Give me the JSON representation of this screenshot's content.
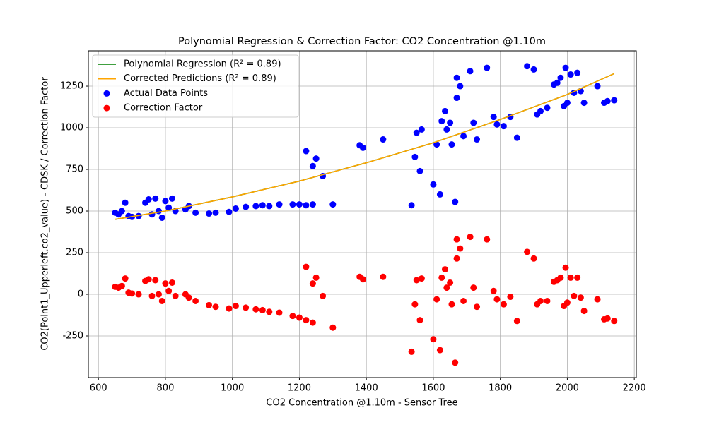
{
  "chart_data": {
    "type": "scatter",
    "title": "Polynomial Regression & Correction Factor: CO2 Concentration @1.10m",
    "x_label": "CO2 Concentration @1.10m - Sensor Tree",
    "y_label": "CO2(Point1_Upperleft.co2_value) - CDSK / Correction Factor",
    "xlim": [
      570,
      2206
    ],
    "ylim": [
      -500,
      1462
    ],
    "xticks": [
      600,
      800,
      1000,
      1200,
      1400,
      1600,
      1800,
      2000,
      2200
    ],
    "yticks": [
      -250,
      0,
      250,
      500,
      750,
      1000,
      1250
    ],
    "grid": true,
    "legend": "upper-left",
    "series": [
      {
        "name": "Polynomial Regression (R² = 0.89)",
        "color": "#008000",
        "mark": "line",
        "x": [
          650,
          800,
          1000,
          1200,
          1400,
          1600,
          1800,
          2000,
          2140
        ],
        "values": [
          450,
          500,
          585,
          680,
          790,
          910,
          1050,
          1200,
          1325
        ]
      },
      {
        "name": "Corrected Predictions (R² = 0.89)",
        "color": "#ffa500",
        "mark": "line",
        "x": [
          650,
          800,
          1000,
          1200,
          1400,
          1600,
          1800,
          2000,
          2140
        ],
        "values": [
          450,
          500,
          585,
          680,
          790,
          910,
          1050,
          1200,
          1325
        ]
      },
      {
        "name": "Actual Data Points",
        "color": "#0000ff",
        "mark": "point",
        "x": [
          650,
          660,
          670,
          680,
          690,
          700,
          720,
          740,
          750,
          760,
          770,
          780,
          790,
          800,
          810,
          820,
          830,
          860,
          870,
          890,
          930,
          950,
          990,
          1010,
          1040,
          1070,
          1090,
          1110,
          1140,
          1180,
          1200,
          1220,
          1220,
          1240,
          1250,
          1240,
          1270,
          1300,
          1380,
          1390,
          1450,
          1535,
          1545,
          1550,
          1560,
          1565,
          1600,
          1610,
          1620,
          1625,
          1635,
          1640,
          1650,
          1655,
          1665,
          1670,
          1670,
          1680,
          1690,
          1710,
          1720,
          1730,
          1760,
          1780,
          1790,
          1810,
          1830,
          1850,
          1880,
          1900,
          1910,
          1920,
          1940,
          1960,
          1970,
          1980,
          1990,
          1995,
          2000,
          2010,
          2020,
          2030,
          2040,
          2050,
          2090,
          2110,
          2120,
          2140
        ],
        "values": [
          490,
          480,
          500,
          550,
          470,
          465,
          470,
          550,
          570,
          480,
          575,
          500,
          460,
          560,
          520,
          575,
          500,
          510,
          530,
          490,
          485,
          490,
          495,
          515,
          525,
          530,
          535,
          530,
          540,
          540,
          540,
          535,
          860,
          770,
          815,
          540,
          710,
          540,
          895,
          880,
          930,
          535,
          825,
          970,
          740,
          990,
          660,
          900,
          600,
          1040,
          1100,
          990,
          1030,
          900,
          555,
          1180,
          1300,
          1250,
          950,
          1340,
          1030,
          930,
          1360,
          1065,
          1020,
          1010,
          1065,
          940,
          1370,
          1350,
          1080,
          1100,
          1120,
          1260,
          1270,
          1300,
          1130,
          1360,
          1150,
          1320,
          1210,
          1330,
          1220,
          1150,
          1250,
          1150,
          1160,
          1165
        ]
      },
      {
        "name": "Correction Factor",
        "color": "#ff0000",
        "mark": "point",
        "x": [
          650,
          660,
          670,
          680,
          690,
          700,
          720,
          740,
          750,
          760,
          770,
          780,
          790,
          800,
          810,
          820,
          830,
          860,
          870,
          890,
          930,
          950,
          990,
          1010,
          1040,
          1070,
          1090,
          1110,
          1140,
          1180,
          1200,
          1220,
          1220,
          1240,
          1250,
          1240,
          1270,
          1300,
          1380,
          1390,
          1450,
          1535,
          1545,
          1550,
          1560,
          1565,
          1600,
          1610,
          1620,
          1625,
          1635,
          1640,
          1650,
          1655,
          1665,
          1670,
          1670,
          1680,
          1690,
          1710,
          1720,
          1730,
          1760,
          1780,
          1790,
          1810,
          1830,
          1850,
          1880,
          1900,
          1910,
          1920,
          1940,
          1960,
          1970,
          1980,
          1990,
          1995,
          2000,
          2010,
          2020,
          2030,
          2040,
          2050,
          2090,
          2110,
          2120,
          2140
        ],
        "values": [
          45,
          40,
          50,
          95,
          10,
          5,
          0,
          80,
          90,
          -10,
          85,
          0,
          -40,
          65,
          20,
          70,
          -10,
          0,
          -20,
          -40,
          -65,
          -75,
          -85,
          -70,
          -80,
          -90,
          -95,
          -105,
          -110,
          -130,
          -140,
          -155,
          165,
          65,
          100,
          -170,
          -10,
          -200,
          105,
          90,
          105,
          -345,
          -60,
          85,
          -155,
          95,
          -270,
          -30,
          -335,
          100,
          150,
          40,
          70,
          -60,
          -410,
          215,
          330,
          275,
          -40,
          345,
          40,
          -75,
          330,
          20,
          -30,
          -60,
          -15,
          -160,
          255,
          215,
          -60,
          -40,
          -40,
          75,
          85,
          100,
          -70,
          160,
          -50,
          100,
          -10,
          100,
          -20,
          -100,
          -30,
          -150,
          -145,
          -160
        ]
      }
    ]
  }
}
